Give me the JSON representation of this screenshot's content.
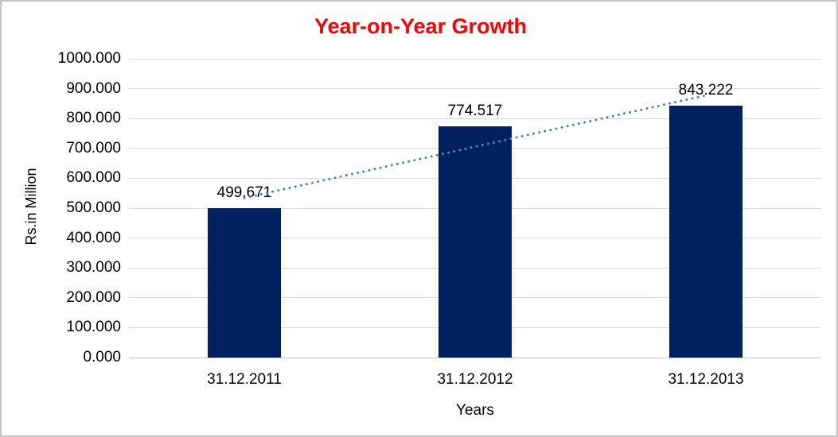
{
  "chart_data": {
    "type": "bar",
    "title": "Year-on-Year Growth",
    "title_color": "#FF0000",
    "xlabel": "Years",
    "ylabel": "Rs.in Million",
    "categories": [
      "31.12.2011",
      "31.12.2012",
      "31.12.2013"
    ],
    "values": [
      499.671,
      774.517,
      843.222
    ],
    "data_labels": [
      "499.671",
      "774.517",
      "843.222"
    ],
    "ylim": [
      0,
      1000
    ],
    "ytick_step": 100,
    "ytick_labels": [
      "0.000",
      "100.000",
      "200.000",
      "300.000",
      "400.000",
      "500.000",
      "600.000",
      "700.000",
      "800.000",
      "900.000",
      "1000.000"
    ],
    "grid": true,
    "legend": "none",
    "bar_color": "#002060",
    "gridline_color": "#D9D9D9",
    "axis_line_color": "#C6C6C6",
    "trendline": {
      "fit": "linear",
      "style": "dotted",
      "color": "#4F81BD"
    }
  }
}
